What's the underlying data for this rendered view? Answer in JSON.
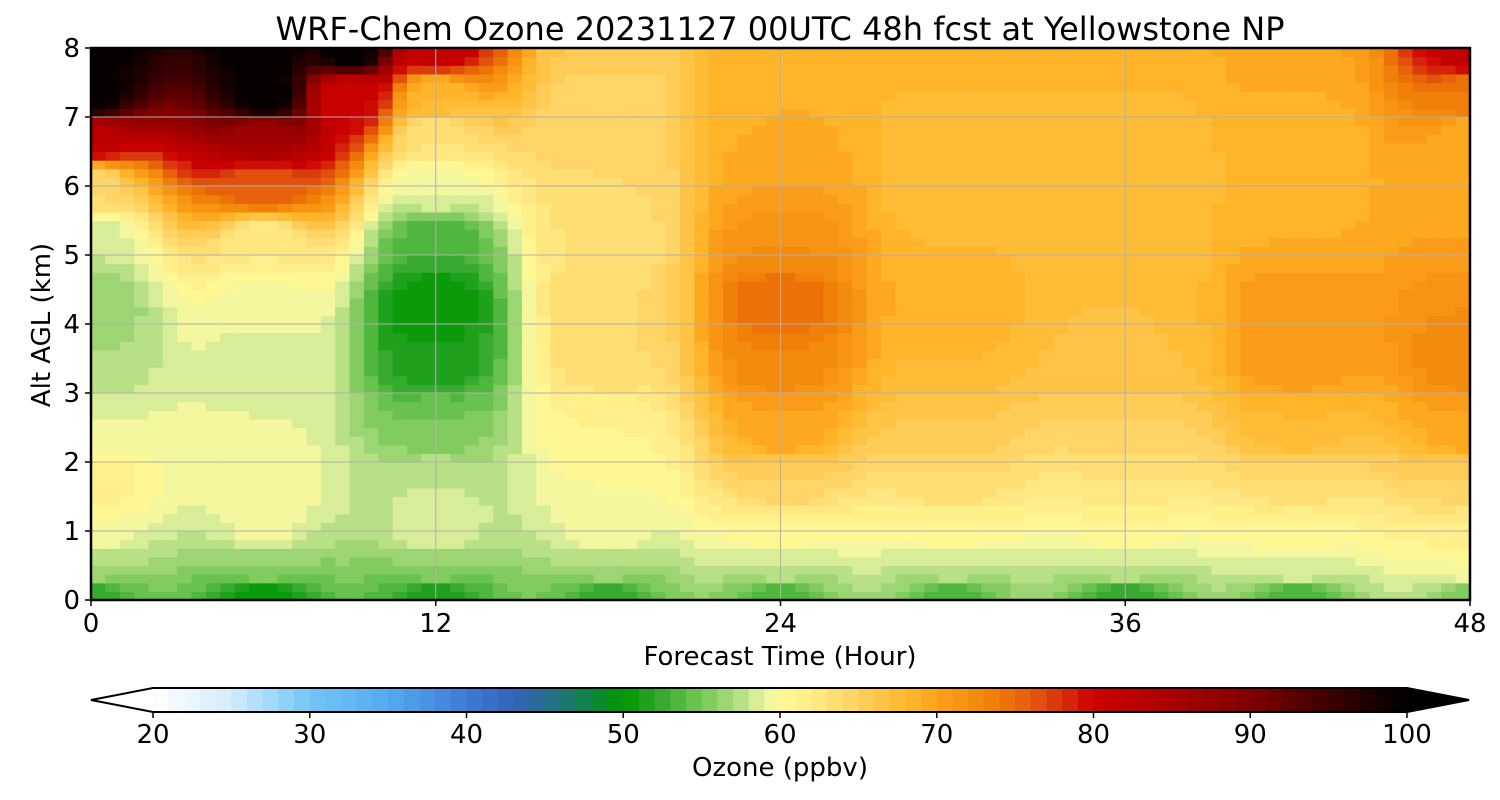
{
  "chart_data": {
    "type": "heatmap",
    "title": "WRF-Chem Ozone  20231127 00UTC 48h fcst at Yellowstone NP",
    "xlabel": "Forecast Time (Hour)",
    "ylabel": "Alt AGL (km)",
    "xlim": [
      0,
      48
    ],
    "ylim": [
      0,
      8
    ],
    "xticks": [
      0,
      12,
      24,
      36,
      48
    ],
    "xtick_labels": [
      "0",
      "12",
      "24",
      "36",
      "48"
    ],
    "yticks": [
      0,
      1,
      2,
      3,
      4,
      5,
      6,
      7,
      8
    ],
    "ytick_labels": [
      "0",
      "1",
      "2",
      "3",
      "4",
      "5",
      "6",
      "7",
      "8"
    ],
    "grid": true,
    "colorbar": {
      "label": "Ozone  (ppbv)",
      "range": [
        20,
        100
      ],
      "ticks": [
        20,
        30,
        40,
        50,
        60,
        70,
        80,
        90,
        100
      ],
      "tick_labels": [
        "20",
        "30",
        "40",
        "50",
        "60",
        "70",
        "80",
        "90",
        "100"
      ],
      "extend": "both",
      "orientation": "horizontal",
      "low_extension_color": "#ffffff",
      "high_extension_color": "#000000",
      "color_stops": [
        {
          "v": 20,
          "c": "#ffffff"
        },
        {
          "v": 25,
          "c": "#d2ecfa"
        },
        {
          "v": 30,
          "c": "#73c5f7"
        },
        {
          "v": 35,
          "c": "#55aaf0"
        },
        {
          "v": 40,
          "c": "#3f7ad6"
        },
        {
          "v": 43,
          "c": "#3462b8"
        },
        {
          "v": 46,
          "c": "#20747a"
        },
        {
          "v": 50,
          "c": "#009600"
        },
        {
          "v": 52,
          "c": "#2aa428"
        },
        {
          "v": 54,
          "c": "#5cbd45"
        },
        {
          "v": 56,
          "c": "#8ecf68"
        },
        {
          "v": 58,
          "c": "#c6e68e"
        },
        {
          "v": 59,
          "c": "#e8f4a2"
        },
        {
          "v": 60,
          "c": "#fffa98"
        },
        {
          "v": 62,
          "c": "#ffec88"
        },
        {
          "v": 65,
          "c": "#ffd060"
        },
        {
          "v": 67,
          "c": "#ffc03c"
        },
        {
          "v": 69,
          "c": "#ffb024"
        },
        {
          "v": 70,
          "c": "#fca01c"
        },
        {
          "v": 72,
          "c": "#f59010"
        },
        {
          "v": 74,
          "c": "#ee7a06"
        },
        {
          "v": 76,
          "c": "#e45a0c"
        },
        {
          "v": 78,
          "c": "#d8300c"
        },
        {
          "v": 80,
          "c": "#cc0000"
        },
        {
          "v": 85,
          "c": "#aa0000"
        },
        {
          "v": 90,
          "c": "#800000"
        },
        {
          "v": 95,
          "c": "#3c0000"
        },
        {
          "v": 100,
          "c": "#000000"
        }
      ]
    },
    "field_description": "Estimated ozone mixing ratio anchors (hour, km, ppbv) used to reconstruct the filled contour field",
    "anchors": [
      {
        "x": 0,
        "y": 0,
        "v": 52
      },
      {
        "x": 6,
        "y": 0,
        "v": 50
      },
      {
        "x": 12,
        "y": 0,
        "v": 51
      },
      {
        "x": 18,
        "y": 0,
        "v": 52
      },
      {
        "x": 24,
        "y": 0,
        "v": 53
      },
      {
        "x": 30,
        "y": 0,
        "v": 53
      },
      {
        "x": 36,
        "y": 0,
        "v": 52
      },
      {
        "x": 42,
        "y": 0,
        "v": 53
      },
      {
        "x": 48,
        "y": 0,
        "v": 55
      },
      {
        "x": 0,
        "y": 0.5,
        "v": 57
      },
      {
        "x": 6,
        "y": 0.5,
        "v": 56
      },
      {
        "x": 12,
        "y": 0.5,
        "v": 56
      },
      {
        "x": 18,
        "y": 0.5,
        "v": 57
      },
      {
        "x": 24,
        "y": 0.5,
        "v": 58
      },
      {
        "x": 30,
        "y": 0.5,
        "v": 58
      },
      {
        "x": 36,
        "y": 0.5,
        "v": 58
      },
      {
        "x": 42,
        "y": 0.5,
        "v": 59
      },
      {
        "x": 48,
        "y": 0.5,
        "v": 60
      },
      {
        "x": 0,
        "y": 1,
        "v": 60
      },
      {
        "x": 6,
        "y": 1,
        "v": 59.5
      },
      {
        "x": 12,
        "y": 1,
        "v": 59
      },
      {
        "x": 18,
        "y": 1,
        "v": 60
      },
      {
        "x": 24,
        "y": 1,
        "v": 61
      },
      {
        "x": 30,
        "y": 1,
        "v": 61
      },
      {
        "x": 36,
        "y": 1,
        "v": 61
      },
      {
        "x": 42,
        "y": 1,
        "v": 61
      },
      {
        "x": 48,
        "y": 1,
        "v": 62
      },
      {
        "x": 0,
        "y": 1.7,
        "v": 62
      },
      {
        "x": 6,
        "y": 1.7,
        "v": 60
      },
      {
        "x": 12,
        "y": 1.7,
        "v": 58
      },
      {
        "x": 18,
        "y": 1.7,
        "v": 60
      },
      {
        "x": 24,
        "y": 1.7,
        "v": 65
      },
      {
        "x": 30,
        "y": 1.7,
        "v": 64
      },
      {
        "x": 36,
        "y": 1.7,
        "v": 63
      },
      {
        "x": 42,
        "y": 1.7,
        "v": 64
      },
      {
        "x": 48,
        "y": 1.7,
        "v": 65
      },
      {
        "x": 0,
        "y": 2.5,
        "v": 59
      },
      {
        "x": 6,
        "y": 2.5,
        "v": 59
      },
      {
        "x": 12,
        "y": 2.5,
        "v": 55
      },
      {
        "x": 18,
        "y": 2.5,
        "v": 61
      },
      {
        "x": 24,
        "y": 2.5,
        "v": 70
      },
      {
        "x": 30,
        "y": 2.5,
        "v": 66
      },
      {
        "x": 36,
        "y": 2.5,
        "v": 65
      },
      {
        "x": 42,
        "y": 2.5,
        "v": 68
      },
      {
        "x": 48,
        "y": 2.5,
        "v": 70
      },
      {
        "x": 0,
        "y": 3.5,
        "v": 57
      },
      {
        "x": 6,
        "y": 3.5,
        "v": 58.5
      },
      {
        "x": 12,
        "y": 3.5,
        "v": 51
      },
      {
        "x": 18,
        "y": 3.5,
        "v": 64
      },
      {
        "x": 24,
        "y": 3.5,
        "v": 73
      },
      {
        "x": 30,
        "y": 3.5,
        "v": 68
      },
      {
        "x": 36,
        "y": 3.5,
        "v": 67
      },
      {
        "x": 42,
        "y": 3.5,
        "v": 71
      },
      {
        "x": 48,
        "y": 3.5,
        "v": 73
      },
      {
        "x": 0,
        "y": 4.3,
        "v": 56
      },
      {
        "x": 6,
        "y": 4.3,
        "v": 59.5
      },
      {
        "x": 12,
        "y": 4.3,
        "v": 50
      },
      {
        "x": 18,
        "y": 4.3,
        "v": 64
      },
      {
        "x": 24,
        "y": 4.3,
        "v": 75
      },
      {
        "x": 30,
        "y": 4.3,
        "v": 69
      },
      {
        "x": 36,
        "y": 4.3,
        "v": 67
      },
      {
        "x": 42,
        "y": 4.3,
        "v": 71
      },
      {
        "x": 48,
        "y": 4.3,
        "v": 72
      },
      {
        "x": 0,
        "y": 5.2,
        "v": 58
      },
      {
        "x": 6,
        "y": 5.2,
        "v": 62
      },
      {
        "x": 12,
        "y": 5.2,
        "v": 53
      },
      {
        "x": 18,
        "y": 5.2,
        "v": 63
      },
      {
        "x": 24,
        "y": 5.2,
        "v": 72
      },
      {
        "x": 30,
        "y": 5.2,
        "v": 68
      },
      {
        "x": 36,
        "y": 5.2,
        "v": 67
      },
      {
        "x": 42,
        "y": 5.2,
        "v": 69
      },
      {
        "x": 48,
        "y": 5.2,
        "v": 70
      },
      {
        "x": 0,
        "y": 6,
        "v": 64
      },
      {
        "x": 6,
        "y": 6,
        "v": 76
      },
      {
        "x": 12,
        "y": 6,
        "v": 59
      },
      {
        "x": 18,
        "y": 6,
        "v": 64
      },
      {
        "x": 24,
        "y": 6,
        "v": 70
      },
      {
        "x": 30,
        "y": 6,
        "v": 67
      },
      {
        "x": 36,
        "y": 6,
        "v": 67
      },
      {
        "x": 42,
        "y": 6,
        "v": 68
      },
      {
        "x": 48,
        "y": 6,
        "v": 69
      },
      {
        "x": 0,
        "y": 6.7,
        "v": 82
      },
      {
        "x": 6,
        "y": 6.7,
        "v": 86
      },
      {
        "x": 12,
        "y": 6.7,
        "v": 63
      },
      {
        "x": 18,
        "y": 6.7,
        "v": 64
      },
      {
        "x": 24,
        "y": 6.7,
        "v": 69
      },
      {
        "x": 30,
        "y": 6.7,
        "v": 67
      },
      {
        "x": 36,
        "y": 6.7,
        "v": 67
      },
      {
        "x": 42,
        "y": 6.7,
        "v": 68
      },
      {
        "x": 48,
        "y": 6.7,
        "v": 69
      },
      {
        "x": 0,
        "y": 7.3,
        "v": 100
      },
      {
        "x": 6,
        "y": 7.3,
        "v": 100
      },
      {
        "x": 9,
        "y": 7.3,
        "v": 80
      },
      {
        "x": 12,
        "y": 7.3,
        "v": 68
      },
      {
        "x": 18,
        "y": 7.3,
        "v": 64
      },
      {
        "x": 24,
        "y": 7.3,
        "v": 69
      },
      {
        "x": 30,
        "y": 7.3,
        "v": 68
      },
      {
        "x": 36,
        "y": 7.3,
        "v": 68
      },
      {
        "x": 42,
        "y": 7.3,
        "v": 69
      },
      {
        "x": 48,
        "y": 7.3,
        "v": 74
      },
      {
        "x": 0,
        "y": 8,
        "v": 100
      },
      {
        "x": 6,
        "y": 8,
        "v": 100
      },
      {
        "x": 9,
        "y": 8,
        "v": 100
      },
      {
        "x": 12,
        "y": 8,
        "v": 82
      },
      {
        "x": 18,
        "y": 8,
        "v": 66
      },
      {
        "x": 24,
        "y": 8,
        "v": 69
      },
      {
        "x": 30,
        "y": 8,
        "v": 69
      },
      {
        "x": 36,
        "y": 8,
        "v": 69
      },
      {
        "x": 42,
        "y": 8,
        "v": 70
      },
      {
        "x": 48,
        "y": 8,
        "v": 82
      }
    ]
  }
}
